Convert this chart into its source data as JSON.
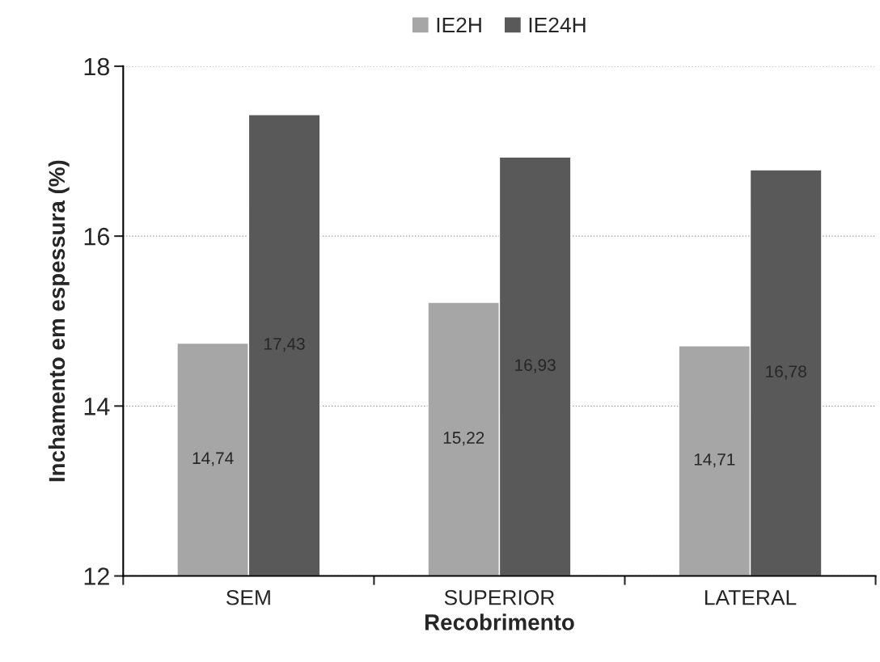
{
  "chart_data": {
    "type": "bar",
    "xlabel": "Recobrimento",
    "ylabel": "Inchamento em espessura (%)",
    "categories": [
      "SEM",
      "SUPERIOR",
      "LATERAL"
    ],
    "series": [
      {
        "name": "IE2H",
        "color": "#a6a6a6",
        "values": [
          14.74,
          15.22,
          14.71
        ],
        "value_labels": [
          "14,74",
          "15,22",
          "14,71"
        ]
      },
      {
        "name": "IE24H",
        "color": "#595959",
        "values": [
          17.43,
          16.93,
          16.78
        ],
        "value_labels": [
          "17,43",
          "16,93",
          "16,78"
        ]
      }
    ],
    "ylim": [
      12,
      18
    ],
    "yticks": [
      12,
      14,
      16,
      18
    ],
    "grid": "y",
    "legend": "top"
  }
}
